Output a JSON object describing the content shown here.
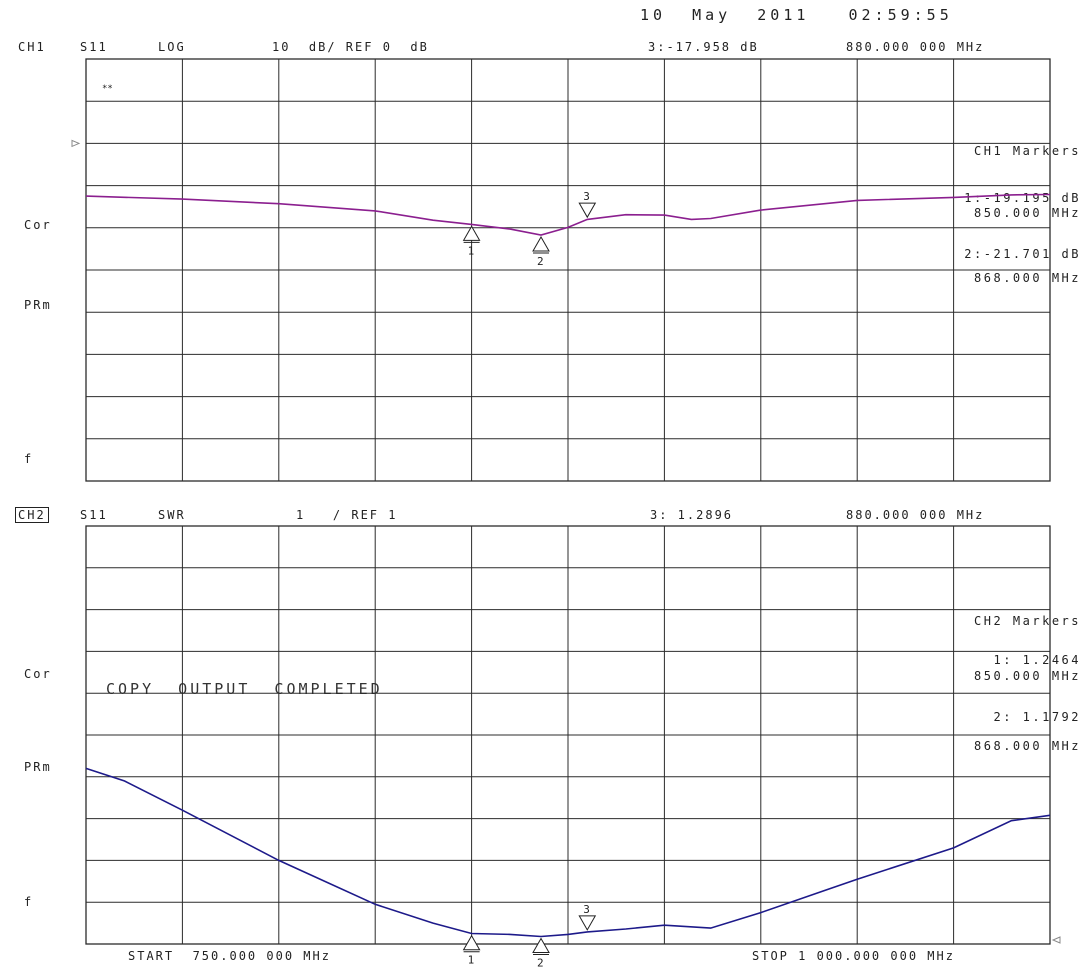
{
  "timestamp": "10  May  2011   02:59:55",
  "colors": {
    "ch1_trace": "#8b1f8f",
    "ch2_trace": "#1d1a8a",
    "grid": "#2b2b2b",
    "text": "#222222"
  },
  "start_label": "START  750.000 000 MHz",
  "stop_label": "STOP 1 000.000 000 MHz",
  "side_labels": {
    "cor": "Cor",
    "prm": "PRm",
    "f": "f"
  },
  "copy_message": "COPY  OUTPUT  COMPLETED",
  "marker_icon": "triangle-marker",
  "channels": [
    {
      "id": "ch1",
      "label": "CH1",
      "param": "S11",
      "format": "LOG",
      "scale": "10  dB/ REF 0  dB",
      "active_marker_value": "3:-17.958 dB",
      "active_marker_freq": "880.000 000 MHz",
      "markers_title": "CH1 Markers",
      "readouts": [
        {
          "value": "1:-19.195 dB",
          "freq": "850.000 MHz"
        },
        {
          "value": "2:-21.701 dB",
          "freq": "868.000 MHz"
        }
      ],
      "tiny_label": "**"
    },
    {
      "id": "ch2",
      "label": "CH2",
      "param": "S11",
      "format": "SWR",
      "scale": "1   / REF 1",
      "active_marker_value": "3: 1.2896",
      "active_marker_freq": "880.000 000 MHz",
      "markers_title": "CH2 Markers",
      "readouts": [
        {
          "value": "1: 1.2464",
          "freq": "850.000 MHz"
        },
        {
          "value": "2: 1.1792",
          "freq": "868.000 MHz"
        }
      ]
    }
  ],
  "chart_data": [
    {
      "type": "line",
      "title": "CH1 S11 LOG",
      "xlabel": "",
      "ylabel": "",
      "xlim": [
        750,
        1000
      ],
      "ylim": [
        -80,
        20
      ],
      "x_unit": "MHz",
      "series": [
        {
          "name": "",
          "x": [
            750,
            775,
            800,
            825,
            840,
            850,
            860,
            868,
            875,
            880,
            890,
            900,
            907,
            912,
            925,
            950,
            975,
            990,
            1000
          ],
          "values": [
            -12.5,
            -13.2,
            -14.3,
            -16.0,
            -18.2,
            -19.2,
            -20.3,
            -21.7,
            -19.9,
            -18.0,
            -16.9,
            -17.0,
            -18.0,
            -17.8,
            -15.8,
            -13.5,
            -12.8,
            -12.2,
            -12.1
          ]
        }
      ],
      "markers": [
        {
          "n": "1",
          "x": 850,
          "y": -19.195
        },
        {
          "n": "2",
          "x": 868,
          "y": -21.701
        },
        {
          "n": "3",
          "x": 880,
          "y": -17.958,
          "active": true
        }
      ]
    },
    {
      "type": "line",
      "title": "CH2 S11 SWR",
      "xlabel": "",
      "ylabel": "",
      "xlim": [
        750,
        1000
      ],
      "ylim": [
        1,
        11
      ],
      "x_unit": "MHz",
      "series": [
        {
          "name": "",
          "x": [
            750,
            760,
            775,
            800,
            825,
            840,
            850,
            860,
            868,
            875,
            880,
            890,
            900,
            912,
            925,
            950,
            975,
            990,
            1000
          ],
          "values": [
            5.2,
            4.9,
            4.2,
            3.0,
            1.95,
            1.5,
            1.25,
            1.23,
            1.18,
            1.23,
            1.29,
            1.36,
            1.45,
            1.38,
            1.75,
            2.55,
            3.3,
            3.95,
            4.08
          ]
        }
      ],
      "markers": [
        {
          "n": "1",
          "x": 850,
          "y": 1.2464
        },
        {
          "n": "2",
          "x": 868,
          "y": 1.1792
        },
        {
          "n": "3",
          "x": 880,
          "y": 1.2896,
          "active": true
        }
      ]
    }
  ]
}
